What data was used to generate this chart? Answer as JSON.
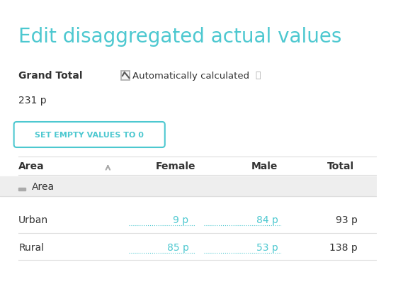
{
  "title": "Edit disaggregated actual values",
  "title_color": "#4dc8d0",
  "title_fontsize": 20,
  "grand_total_label": "Grand Total",
  "auto_calc_label": "Automatically calculated",
  "grand_total_value": "231 p",
  "button_text": "SET EMPTY VALUES TO 0",
  "button_color": "#4dc8d0",
  "bg_color": "#ffffff",
  "table_header": [
    "Area",
    "",
    "Female",
    "Male",
    "Total"
  ],
  "area_group_label": "Area",
  "rows": [
    {
      "area": "Urban",
      "female": "9 p",
      "male": "84 p",
      "total": "93 p"
    },
    {
      "area": "Rural",
      "female": "85 p",
      "male": "53 p",
      "total": "138 p"
    }
  ],
  "teal_color": "#4dc8d0",
  "dark_text": "#333333",
  "gray_text": "#aaaaaa",
  "header_bg": "#ffffff",
  "area_group_bg": "#eeeeee",
  "row_bg": "#ffffff",
  "separator_color": "#dddddd"
}
